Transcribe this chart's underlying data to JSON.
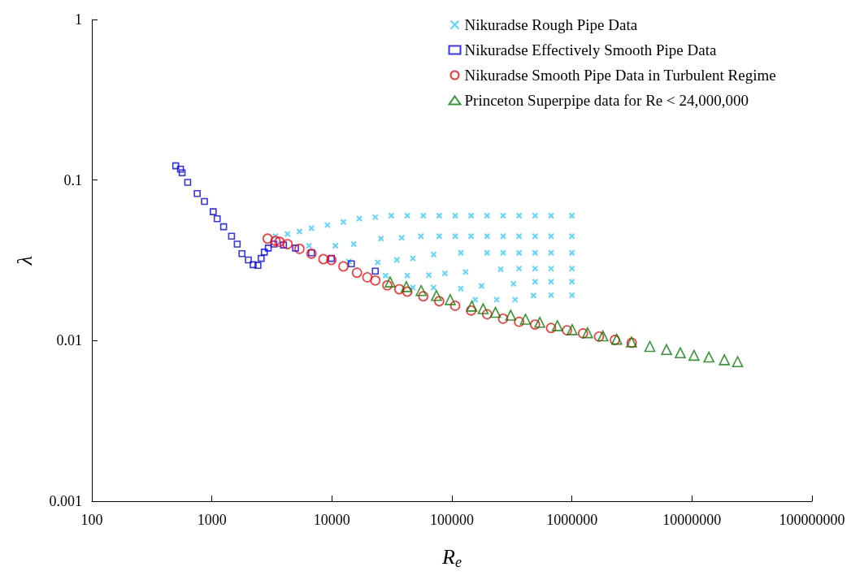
{
  "chart_data": {
    "type": "scatter",
    "xlabel": "R$_{e}$",
    "ylabel": "λ",
    "log": "xy",
    "grid": false,
    "legend": "top right",
    "xlim": [
      100,
      100000000
    ],
    "xticks": [
      100,
      1000,
      10000,
      100000,
      1000000,
      10000000,
      100000000
    ],
    "ylim": [
      0.001,
      1
    ],
    "yticks": [
      0.001,
      0.01,
      0.1,
      1
    ],
    "series": [
      {
        "name": "Nikuradse Rough Pipe Data",
        "color": "#33ccff",
        "marker": "cross",
        "x": [
          3390,
          4270,
          5370,
          6760,
          9180,
          12470,
          16940,
          23010,
          31260,
          42500,
          57700,
          78400,
          106500,
          144500,
          196400,
          267000,
          363000,
          493000,
          670000,
          1000000,
          6450,
          10700,
          15210,
          25630,
          38150,
          55100,
          78400,
          106500,
          144500,
          196400,
          267000,
          363000,
          493000,
          670000,
          1000000,
          13870,
          24100,
          34800,
          47300,
          70400,
          118600,
          196400,
          267000,
          363000,
          493000,
          670000,
          1000000,
          28060,
          42500,
          64200,
          87300,
          130000,
          255000,
          363000,
          493000,
          670000,
          1000000,
          47300,
          70400,
          118600,
          176600,
          326000,
          493000,
          670000,
          1000000,
          156300,
          236000,
          336000,
          478000,
          670000,
          1000000
        ],
        "values": [
          0.0447,
          0.0462,
          0.0478,
          0.0501,
          0.0524,
          0.0548,
          0.0574,
          0.0587,
          0.06,
          0.06,
          0.06,
          0.06,
          0.06,
          0.06,
          0.06,
          0.06,
          0.06,
          0.06,
          0.06,
          0.06,
          0.039,
          0.039,
          0.0399,
          0.0432,
          0.0437,
          0.0447,
          0.0447,
          0.0447,
          0.0447,
          0.0447,
          0.0447,
          0.0447,
          0.0447,
          0.0447,
          0.0447,
          0.0311,
          0.0307,
          0.0318,
          0.0325,
          0.0344,
          0.0352,
          0.0352,
          0.0352,
          0.0352,
          0.0352,
          0.0352,
          0.0352,
          0.0254,
          0.0254,
          0.0256,
          0.0262,
          0.0268,
          0.0278,
          0.0281,
          0.0281,
          0.0281,
          0.0281,
          0.0214,
          0.0214,
          0.0211,
          0.0219,
          0.0226,
          0.0233,
          0.0233,
          0.0233,
          0.018,
          0.018,
          0.018,
          0.0191,
          0.0192,
          0.0192
        ]
      },
      {
        "name": "Nikuradse Effectively Smooth Pipe Data",
        "color": "#0000ff",
        "marker": "square",
        "x": [
          500,
          548,
          565,
          629,
          755,
          867,
          1026,
          1108,
          1253,
          1459,
          1626,
          1782,
          2014,
          2208,
          2421,
          2575,
          2736,
          2953,
          3289,
          3953,
          4976,
          6761,
          9908,
          14530,
          23000
        ],
        "values": [
          0.1227,
          0.117,
          0.111,
          0.0967,
          0.0825,
          0.0736,
          0.0635,
          0.0574,
          0.0512,
          0.0447,
          0.0399,
          0.0348,
          0.0318,
          0.0297,
          0.0294,
          0.0325,
          0.0356,
          0.0377,
          0.0399,
          0.0394,
          0.0377,
          0.0352,
          0.0325,
          0.0301,
          0.0271
        ]
      },
      {
        "name": "Nikuradse Smooth Pipe Data in Turbulent Regime",
        "color": "#ff0000",
        "marker": "circle",
        "x": [
          2914,
          3390,
          3660,
          4270,
          5370,
          6760,
          8500,
          9900,
          12470,
          16180,
          19730,
          23010,
          28970,
          36460,
          42500,
          57700,
          78400,
          106500,
          144500,
          196400,
          267000,
          363000,
          493000,
          670000,
          910000,
          1236000,
          1680000,
          2280000,
          3150000
        ],
        "values": [
          0.0432,
          0.0418,
          0.0413,
          0.0399,
          0.0373,
          0.0348,
          0.0322,
          0.0318,
          0.029,
          0.0265,
          0.0248,
          0.0237,
          0.0221,
          0.0209,
          0.0202,
          0.0189,
          0.0176,
          0.0165,
          0.0154,
          0.0146,
          0.0137,
          0.0131,
          0.0126,
          0.012,
          0.0116,
          0.0111,
          0.0106,
          0.0101,
          0.0097
        ]
      },
      {
        "name": "Princeton Superpipe data for Re < 24,000,000",
        "color": "#008000",
        "marker": "triangle",
        "x": [
          30550,
          41700,
          55400,
          74300,
          96800,
          146500,
          182000,
          230600,
          309000,
          410000,
          540000,
          757000,
          1005000,
          1349000,
          1812000,
          2362000,
          3135000,
          4460000,
          6140000,
          8000000,
          10400000,
          13840000,
          18620000,
          24000000
        ],
        "values": [
          0.0232,
          0.0217,
          0.0205,
          0.0191,
          0.018,
          0.0164,
          0.0158,
          0.015,
          0.0144,
          0.0136,
          0.013,
          0.0124,
          0.0117,
          0.0112,
          0.0107,
          0.0102,
          0.0098,
          0.0092,
          0.0088,
          0.0084,
          0.0081,
          0.0079,
          0.0076,
          0.0074
        ]
      }
    ]
  }
}
